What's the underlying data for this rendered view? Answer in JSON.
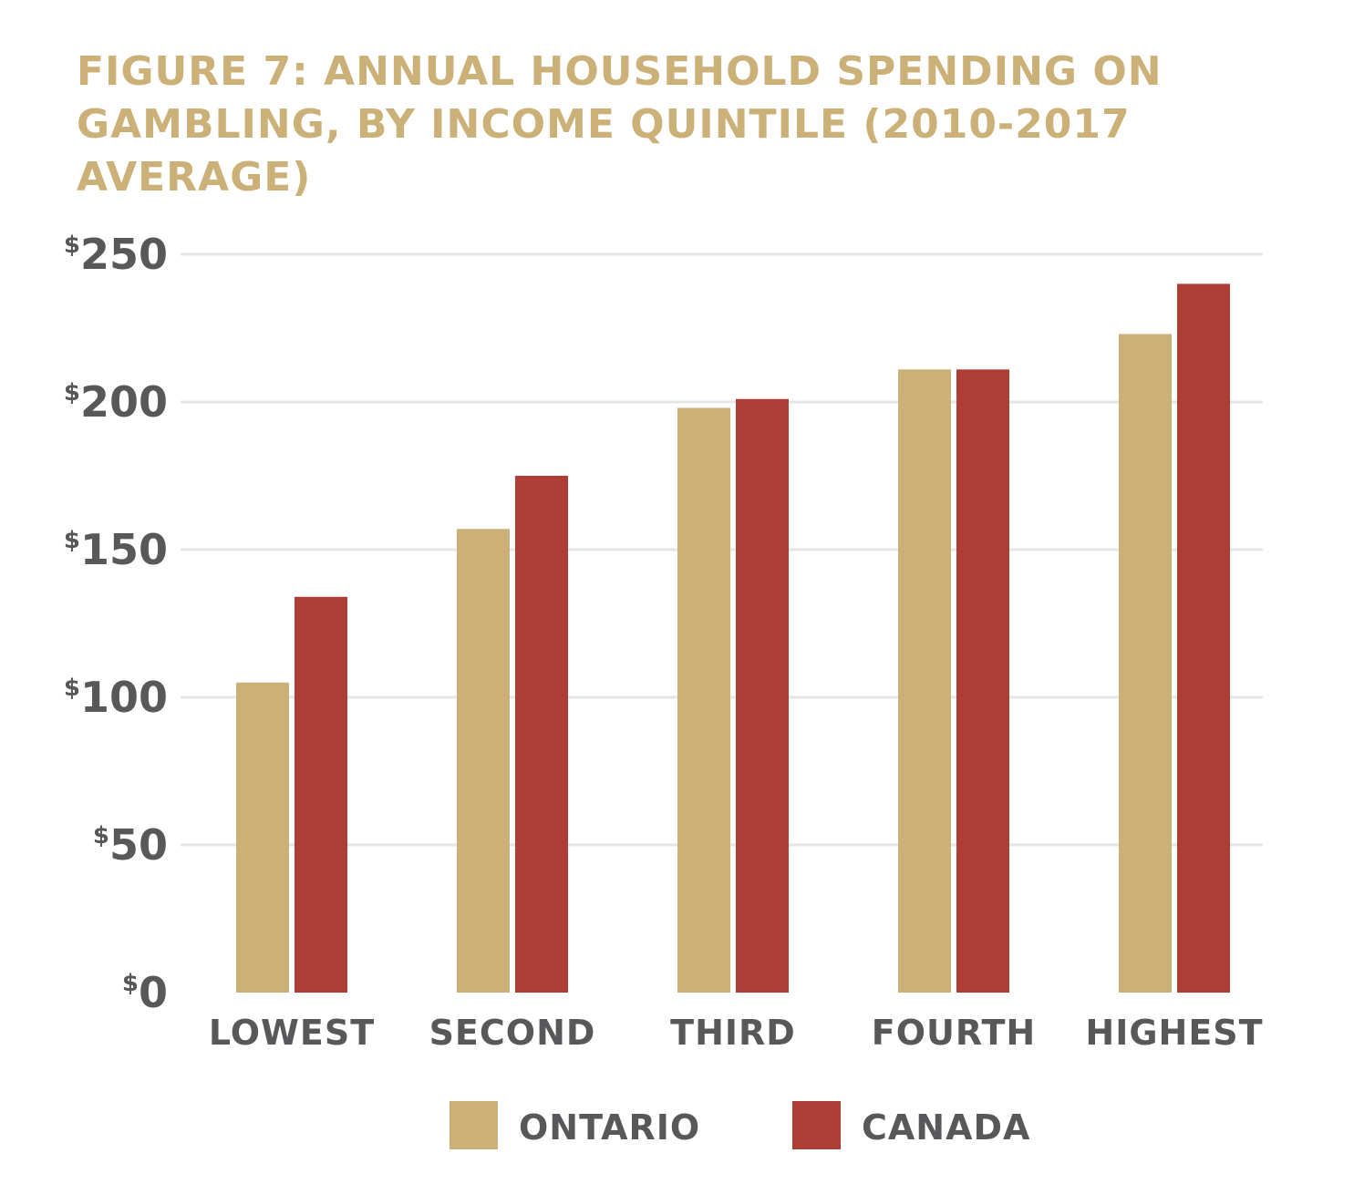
{
  "chart_data": {
    "type": "bar",
    "title": "FIGURE 7: ANNUAL HOUSEHOLD SPENDING ON GAMBLING, BY INCOME QUINTILE (2010-2017 AVERAGE)",
    "categories": [
      "LOWEST",
      "SECOND",
      "THIRD",
      "FOURTH",
      "HIGHEST"
    ],
    "series": [
      {
        "name": "ONTARIO",
        "color": "#cbb077",
        "values": [
          105,
          157,
          198,
          211,
          223
        ]
      },
      {
        "name": "CANADA",
        "color": "#ae3e35",
        "values": [
          134,
          175,
          201,
          211,
          240
        ]
      }
    ],
    "yticks": [
      {
        "value": 0,
        "currency": "$",
        "amount": "0"
      },
      {
        "value": 50,
        "currency": "$",
        "amount": "50"
      },
      {
        "value": 100,
        "currency": "$",
        "amount": "100"
      },
      {
        "value": 150,
        "currency": "$",
        "amount": "150"
      },
      {
        "value": 200,
        "currency": "$",
        "amount": "200"
      },
      {
        "value": 250,
        "currency": "$",
        "amount": "250"
      }
    ],
    "ylim": [
      0,
      250
    ],
    "grid": true,
    "legend_position": "bottom-center",
    "xlabel": "",
    "ylabel": ""
  }
}
